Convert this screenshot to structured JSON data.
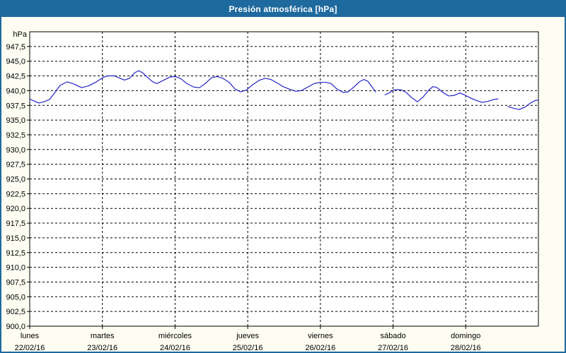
{
  "window": {
    "title": "Presión atmosférica [hPa]"
  },
  "colors": {
    "titlebar_bg": "#1e699e",
    "titlebar_text": "#ffffff",
    "page_bg": "#fdfdf2",
    "plot_bg": "#ffffff",
    "axis_frame": "#000000",
    "grid": "#000000",
    "label_text": "#000000",
    "line": "#2323c8"
  },
  "chart_data": {
    "type": "line",
    "title": "Presión atmosférica [hPa]",
    "ylabel": "hPa",
    "xlabel": "",
    "ylim": [
      900,
      950
    ],
    "ytick_step": 2.5,
    "ytick_label_min": 900.0,
    "ytick_label_max": 947.5,
    "grid": "dashed",
    "legend_position": "none",
    "x_categories": [
      {
        "name": "lunes",
        "date": "22/02/16"
      },
      {
        "name": "martes",
        "date": "23/02/16"
      },
      {
        "name": "miércoles",
        "date": "24/02/16"
      },
      {
        "name": "jueves",
        "date": "25/02/16"
      },
      {
        "name": "viernes",
        "date": "26/02/16"
      },
      {
        "name": "sábado",
        "date": "27/02/16"
      },
      {
        "name": "domingo",
        "date": "28/02/16"
      }
    ],
    "series": [
      {
        "name": "Presión atmosférica",
        "unit": "hPa",
        "color": "#2323c8",
        "points": [
          [
            0.0,
            938.6
          ],
          [
            0.049,
            938.3
          ],
          [
            0.127,
            937.9
          ],
          [
            0.195,
            938.1
          ],
          [
            0.273,
            938.5
          ],
          [
            0.341,
            939.6
          ],
          [
            0.419,
            940.9
          ],
          [
            0.516,
            941.5
          ],
          [
            0.613,
            941.1
          ],
          [
            0.711,
            940.5
          ],
          [
            0.808,
            940.8
          ],
          [
            0.905,
            941.4
          ],
          [
            1.003,
            942.2
          ],
          [
            1.071,
            942.5
          ],
          [
            1.168,
            942.5
          ],
          [
            1.246,
            942.1
          ],
          [
            1.305,
            941.8
          ],
          [
            1.373,
            942.1
          ],
          [
            1.441,
            943.0
          ],
          [
            1.499,
            943.4
          ],
          [
            1.558,
            943.0
          ],
          [
            1.636,
            942.1
          ],
          [
            1.694,
            941.5
          ],
          [
            1.752,
            941.2
          ],
          [
            1.83,
            941.7
          ],
          [
            1.928,
            942.3
          ],
          [
            2.006,
            942.4
          ],
          [
            2.083,
            942.0
          ],
          [
            2.161,
            941.2
          ],
          [
            2.259,
            940.6
          ],
          [
            2.337,
            940.5
          ],
          [
            2.414,
            941.2
          ],
          [
            2.502,
            942.2
          ],
          [
            2.58,
            942.4
          ],
          [
            2.658,
            942.1
          ],
          [
            2.745,
            941.4
          ],
          [
            2.823,
            940.3
          ],
          [
            2.901,
            939.8
          ],
          [
            2.979,
            940.1
          ],
          [
            3.067,
            941.0
          ],
          [
            3.164,
            941.8
          ],
          [
            3.242,
            942.1
          ],
          [
            3.32,
            941.9
          ],
          [
            3.407,
            941.3
          ],
          [
            3.485,
            940.7
          ],
          [
            3.563,
            940.3
          ],
          [
            3.66,
            939.9
          ],
          [
            3.738,
            940.0
          ],
          [
            3.826,
            940.6
          ],
          [
            3.913,
            941.2
          ],
          [
            4.001,
            941.4
          ],
          [
            4.079,
            941.4
          ],
          [
            4.147,
            941.2
          ],
          [
            4.225,
            940.3
          ],
          [
            4.313,
            939.7
          ],
          [
            4.381,
            939.8
          ],
          [
            4.459,
            940.6
          ],
          [
            4.537,
            941.5
          ],
          [
            4.595,
            941.9
          ],
          [
            4.653,
            941.6
          ],
          [
            4.712,
            940.6
          ],
          [
            4.76,
            939.8
          ],
          null,
          [
            4.887,
            939.3
          ],
          [
            4.945,
            939.6
          ],
          [
            5.004,
            940.1
          ],
          [
            5.062,
            940.2
          ],
          [
            5.12,
            940.1
          ],
          [
            5.179,
            939.7
          ],
          [
            5.257,
            938.8
          ],
          [
            5.335,
            938.1
          ],
          [
            5.412,
            938.9
          ],
          [
            5.49,
            940.1
          ],
          [
            5.549,
            940.7
          ],
          [
            5.607,
            940.5
          ],
          [
            5.685,
            939.7
          ],
          [
            5.763,
            939.1
          ],
          [
            5.841,
            939.2
          ],
          [
            5.919,
            939.6
          ],
          [
            5.997,
            939.2
          ],
          [
            6.074,
            938.7
          ],
          [
            6.152,
            938.3
          ],
          [
            6.23,
            938.0
          ],
          [
            6.308,
            938.2
          ],
          [
            6.386,
            938.5
          ],
          [
            6.444,
            938.6
          ],
          null,
          [
            6.581,
            937.3
          ],
          [
            6.658,
            937.0
          ],
          [
            6.736,
            936.8
          ],
          [
            6.814,
            937.2
          ],
          [
            6.892,
            937.9
          ],
          [
            6.95,
            938.3
          ],
          [
            6.999,
            938.4
          ]
        ]
      }
    ]
  }
}
